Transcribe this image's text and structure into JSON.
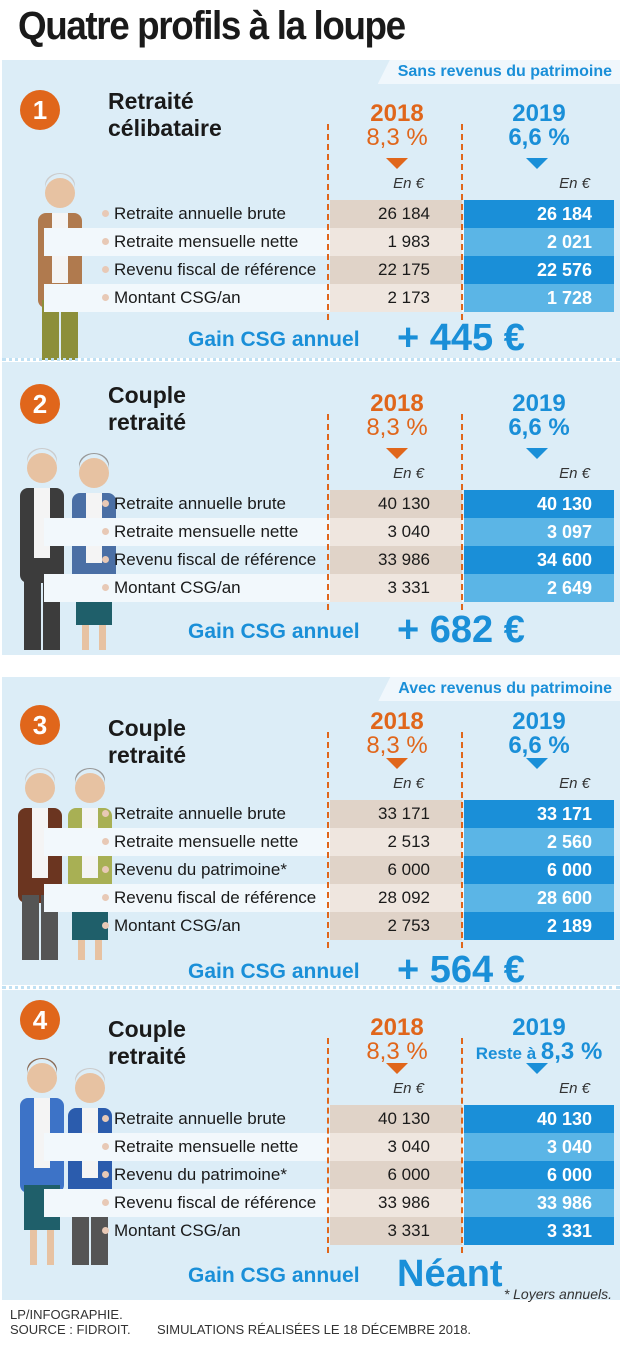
{
  "title": "Quatre profils à la loupe",
  "colors": {
    "orange": "#e0661b",
    "blue": "#1a8fd8",
    "light_blue": "#5bb5e6",
    "beige": "#e0d3c8",
    "panel": "#dcedf7"
  },
  "panels": [
    {
      "banner": "Sans revenus du patrimoine",
      "number": "1",
      "title": [
        "Retraité",
        "célibataire"
      ],
      "year_2018": "2018",
      "rate_2018": "8,3 %",
      "year_2019": "2019",
      "rate_2019": "6,6 %",
      "prefix_2019": "",
      "unit": "En €",
      "rows": [
        [
          "Retraite annuelle brute",
          "26 184",
          "26 184"
        ],
        [
          "Retraite mensuelle nette",
          "1 983",
          "2 021"
        ],
        [
          "Revenu fiscal de référence",
          "22 175",
          "22 576"
        ],
        [
          "Montant CSG/an",
          "2 173",
          "1 728"
        ]
      ],
      "gain_label": "Gain CSG annuel",
      "gain_value": "+ 445 €"
    },
    {
      "banner": "",
      "number": "2",
      "title": [
        "Couple",
        "retraité"
      ],
      "year_2018": "2018",
      "rate_2018": "8,3 %",
      "year_2019": "2019",
      "rate_2019": "6,6 %",
      "prefix_2019": "",
      "unit": "En €",
      "rows": [
        [
          "Retraite annuelle brute",
          "40 130",
          "40 130"
        ],
        [
          "Retraite mensuelle nette",
          "3 040",
          "3 097"
        ],
        [
          "Revenu fiscal de référence",
          "33 986",
          "34 600"
        ],
        [
          "Montant CSG/an",
          "3 331",
          "2 649"
        ]
      ],
      "gain_label": "Gain CSG annuel",
      "gain_value": "+ 682 €"
    },
    {
      "banner": "Avec revenus du patrimoine",
      "number": "3",
      "title": [
        "Couple",
        "retraité"
      ],
      "year_2018": "2018",
      "rate_2018": "8,3 %",
      "year_2019": "2019",
      "rate_2019": "6,6 %",
      "prefix_2019": "",
      "unit": "En €",
      "rows": [
        [
          "Retraite annuelle brute",
          "33 171",
          "33 171"
        ],
        [
          "Retraite mensuelle nette",
          "2 513",
          "2 560"
        ],
        [
          "Revenu du patrimoine*",
          "6 000",
          "6 000"
        ],
        [
          "Revenu fiscal de référence",
          "28 092",
          "28 600"
        ],
        [
          "Montant CSG/an",
          "2 753",
          "2 189"
        ]
      ],
      "gain_label": "Gain CSG annuel",
      "gain_value": "+ 564 €"
    },
    {
      "banner": "",
      "number": "4",
      "title": [
        "Couple",
        "retraité"
      ],
      "year_2018": "2018",
      "rate_2018": "8,3 %",
      "year_2019": "2019",
      "rate_2019": "8,3 %",
      "prefix_2019": "Reste à ",
      "unit": "En €",
      "rows": [
        [
          "Retraite annuelle brute",
          "40 130",
          "40 130"
        ],
        [
          "Retraite mensuelle nette",
          "3 040",
          "3 040"
        ],
        [
          "Revenu du patrimoine*",
          "6 000",
          "6 000"
        ],
        [
          "Revenu fiscal de référence",
          "33 986",
          "33 986"
        ],
        [
          "Montant CSG/an",
          "3 331",
          "3 331"
        ]
      ],
      "gain_label": "Gain CSG annuel",
      "gain_value": "Néant",
      "footnote": "* Loyers annuels."
    }
  ],
  "footer": {
    "credit": "LP/INFOGRAPHIE.",
    "source": "SOURCE : FIDROIT.",
    "note": "SIMULATIONS RÉALISÉES LE 18 DÉCEMBRE 2018."
  }
}
